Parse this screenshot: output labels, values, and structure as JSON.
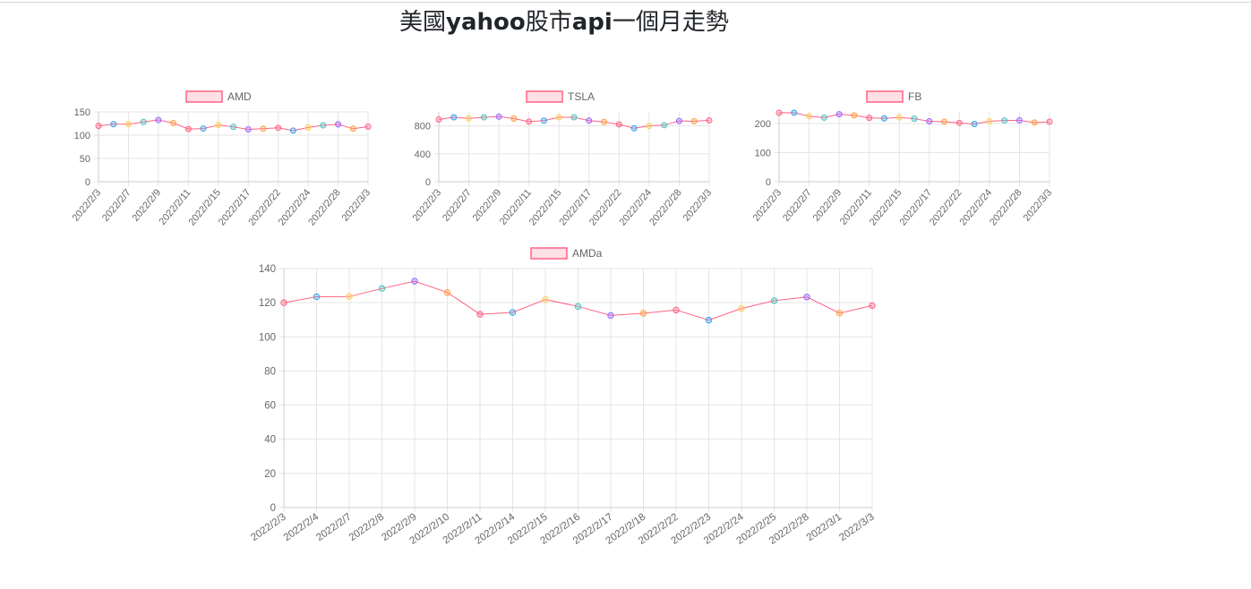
{
  "page": {
    "title_prefix": "美國",
    "title_bold1": "yahoo",
    "title_mid": "股市",
    "title_bold2": "api",
    "title_suffix": "一個月走勢"
  },
  "colors": {
    "series_line": "#ff6384",
    "legend_fill": "#ffe0e6",
    "grid": "#e5e5e5",
    "tick_text": "#666666",
    "point_palette": [
      "#ff6384",
      "#36a2eb",
      "#ffce56",
      "#4bc0c0",
      "#9966ff",
      "#ff9f40"
    ]
  },
  "chart_data": [
    {
      "type": "line",
      "legend": "AMD",
      "x": [
        "2022/2/3",
        "2022/2/4",
        "2022/2/7",
        "2022/2/8",
        "2022/2/9",
        "2022/2/10",
        "2022/2/11",
        "2022/2/14",
        "2022/2/15",
        "2022/2/16",
        "2022/2/17",
        "2022/2/18",
        "2022/2/22",
        "2022/2/23",
        "2022/2/24",
        "2022/2/25",
        "2022/2/28",
        "2022/3/1",
        "2022/3/3"
      ],
      "x_tick_labels": [
        "2022/2/3",
        "2022/2/7",
        "2022/2/9",
        "2022/2/11",
        "2022/2/15",
        "2022/2/17",
        "2022/2/22",
        "2022/2/24",
        "2022/2/28",
        "2022/3/3"
      ],
      "values": [
        120,
        123.5,
        123.6,
        128.3,
        132.6,
        126,
        113.2,
        114.3,
        121.8,
        117.8,
        112.5,
        113.8,
        115.7,
        109.8,
        116.6,
        121.2,
        123.3,
        113.9,
        118.3
      ],
      "ylim": [
        0,
        150
      ],
      "y_ticks": [
        0,
        50,
        100,
        150
      ],
      "grid": true,
      "legend_position": "top-center"
    },
    {
      "type": "line",
      "legend": "TSLA",
      "x": [
        "2022/2/3",
        "2022/2/4",
        "2022/2/7",
        "2022/2/8",
        "2022/2/9",
        "2022/2/10",
        "2022/2/11",
        "2022/2/14",
        "2022/2/15",
        "2022/2/16",
        "2022/2/17",
        "2022/2/18",
        "2022/2/22",
        "2022/2/23",
        "2022/2/24",
        "2022/2/25",
        "2022/2/28",
        "2022/3/1",
        "2022/3/3"
      ],
      "x_tick_labels": [
        "2022/2/3",
        "2022/2/7",
        "2022/2/9",
        "2022/2/11",
        "2022/2/15",
        "2022/2/17",
        "2022/2/22",
        "2022/2/24",
        "2022/2/28",
        "2022/3/3"
      ],
      "values": [
        891,
        923,
        907,
        922,
        932,
        904,
        860,
        875,
        923,
        923,
        876,
        856,
        821,
        765,
        800,
        810,
        870,
        865,
        879
      ],
      "ylim": [
        0,
        1000
      ],
      "y_ticks": [
        0,
        400,
        800
      ],
      "grid": true,
      "legend_position": "top-center"
    },
    {
      "type": "line",
      "legend": "FB",
      "x": [
        "2022/2/3",
        "2022/2/4",
        "2022/2/7",
        "2022/2/8",
        "2022/2/9",
        "2022/2/10",
        "2022/2/11",
        "2022/2/14",
        "2022/2/15",
        "2022/2/16",
        "2022/2/17",
        "2022/2/18",
        "2022/2/22",
        "2022/2/23",
        "2022/2/24",
        "2022/2/25",
        "2022/2/28",
        "2022/3/1",
        "2022/3/3"
      ],
      "x_tick_labels": [
        "2022/2/3",
        "2022/2/7",
        "2022/2/9",
        "2022/2/11",
        "2022/2/15",
        "2022/2/17",
        "2022/2/22",
        "2022/2/24",
        "2022/2/28",
        "2022/3/3"
      ],
      "values": [
        237,
        237.1,
        224.9,
        220.2,
        232,
        228.1,
        219.6,
        217.7,
        221,
        216.5,
        207.7,
        206.2,
        202.1,
        198.5,
        207.6,
        210.5,
        211,
        203.5,
        206.2
      ],
      "ylim": [
        0,
        240
      ],
      "y_ticks": [
        0,
        100,
        200
      ],
      "grid": true,
      "legend_position": "top-center"
    },
    {
      "type": "line",
      "legend": "AMDa",
      "x": [
        "2022/2/3",
        "2022/2/4",
        "2022/2/7",
        "2022/2/8",
        "2022/2/9",
        "2022/2/10",
        "2022/2/11",
        "2022/2/14",
        "2022/2/15",
        "2022/2/16",
        "2022/2/17",
        "2022/2/18",
        "2022/2/22",
        "2022/2/23",
        "2022/2/24",
        "2022/2/25",
        "2022/2/28",
        "2022/3/1",
        "2022/3/3"
      ],
      "x_tick_labels": [
        "2022/2/3",
        "2022/2/4",
        "2022/2/7",
        "2022/2/8",
        "2022/2/9",
        "2022/2/10",
        "2022/2/11",
        "2022/2/14",
        "2022/2/15",
        "2022/2/16",
        "2022/2/17",
        "2022/2/18",
        "2022/2/22",
        "2022/2/23",
        "2022/2/24",
        "2022/2/25",
        "2022/2/28",
        "2022/3/1",
        "2022/3/3"
      ],
      "values": [
        120,
        123.5,
        123.6,
        128.3,
        132.6,
        126,
        113.2,
        114.3,
        121.8,
        117.8,
        112.5,
        113.8,
        115.7,
        109.8,
        116.6,
        121.2,
        123.3,
        113.9,
        118.3
      ],
      "ylim": [
        0,
        140
      ],
      "y_ticks": [
        0,
        20,
        40,
        60,
        80,
        100,
        120,
        140
      ],
      "grid": true,
      "legend_position": "top-center"
    }
  ]
}
